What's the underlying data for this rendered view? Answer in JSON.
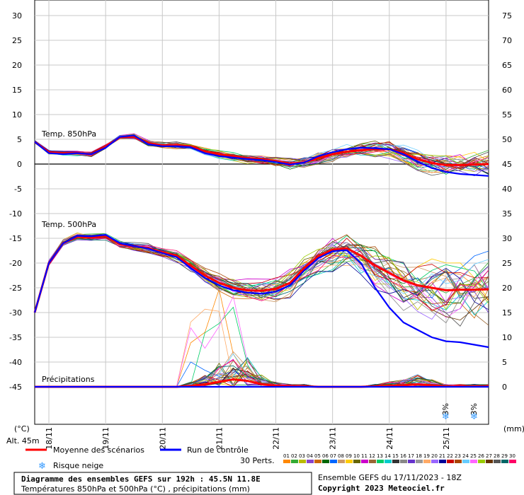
{
  "chart_data": {
    "type": "line",
    "title": "Diagramme des ensembles GEFS sur 192h : 45.5N 11.8E",
    "subtitle": "Températures 850hPa et 500hPa (°C) , précipitations (mm)",
    "run_info": "Ensemble GEFS du 17/11/2023 - 18Z",
    "copyright": "Copyright 2023 Meteociel.fr",
    "altitude": "Alt. 45m",
    "left_unit": "(°C)",
    "right_unit": "(mm)",
    "y_left_ticks": [
      "30",
      "25",
      "20",
      "15",
      "10",
      "5",
      "0",
      "-5",
      "-10",
      "-15",
      "-20",
      "-25",
      "-30",
      "-35",
      "-40",
      "-45"
    ],
    "y_right_ticks": [
      "75",
      "70",
      "65",
      "60",
      "55",
      "50",
      "45",
      "40",
      "35",
      "30",
      "25",
      "20",
      "15",
      "10",
      "5",
      "0"
    ],
    "ylim_temp": [
      -45,
      30
    ],
    "ylim_precip": [
      0,
      75
    ],
    "date_labels": [
      "18/11",
      "19/11",
      "20/11",
      "21/11",
      "22/11",
      "23/11",
      "24/11",
      "25/11"
    ],
    "hours": [
      0,
      6,
      12,
      18,
      24,
      30,
      36,
      42,
      48,
      54,
      60,
      66,
      72,
      78,
      84,
      90,
      96,
      102,
      108,
      114,
      120,
      126,
      132,
      138,
      144,
      150,
      156,
      162,
      168,
      174,
      180,
      186,
      192
    ],
    "panel_labels": {
      "t850": "Temp. 850hPa",
      "t500": "Temp. 500hPa",
      "precip": "Précipitations"
    },
    "legend": {
      "mean": "Moyenne des scénarios",
      "control": "Run de contrôle",
      "snow": "Risque neige",
      "perts": "30 Perts.",
      "member_numbers": [
        "01",
        "02",
        "03",
        "04",
        "05",
        "06",
        "07",
        "08",
        "09",
        "10",
        "11",
        "12",
        "13",
        "14",
        "15",
        "16",
        "17",
        "18",
        "19",
        "20",
        "21",
        "22",
        "23",
        "24",
        "25",
        "26",
        "27",
        "28",
        "29",
        "30"
      ]
    },
    "colors": {
      "mean": "#ff0000",
      "control": "#0000ff",
      "members": [
        "#ff8800",
        "#33aa33",
        "#bbbb00",
        "#8844cc",
        "#cc6600",
        "#006600",
        "#0066ff",
        "#cc9966",
        "#ffcc00",
        "#666600",
        "#cc00cc",
        "#996633",
        "#00cc66",
        "#00cccc",
        "#333333",
        "#888888",
        "#6633cc",
        "#999999",
        "#ffaa66",
        "#9966ff",
        "#000099",
        "#cc0000",
        "#aa4400",
        "#66ccff",
        "#ff66ff",
        "#99cc00",
        "#663300",
        "#555555",
        "#006666",
        "#ff0066"
      ]
    },
    "snow_markers": [
      {
        "hour": 174,
        "percent": "3%"
      },
      {
        "hour": 186,
        "percent": "3%"
      }
    ],
    "series": [
      {
        "name": "Moyenne des scénarios",
        "level": "850hPa",
        "values": [
          4.5,
          2.4,
          2.2,
          2.2,
          2.0,
          3.5,
          5.4,
          5.6,
          4.2,
          3.8,
          3.8,
          3.6,
          2.6,
          2.0,
          1.6,
          1.2,
          1.0,
          0.6,
          0.1,
          0.3,
          1.2,
          2.0,
          2.5,
          2.8,
          3.0,
          3.0,
          2.2,
          1.0,
          0.2,
          -0.2,
          -0.2,
          -0.1,
          0.0
        ]
      },
      {
        "name": "Run de contrôle",
        "level": "850hPa",
        "values": [
          4.5,
          2.2,
          2.0,
          2.2,
          2.0,
          3.3,
          5.5,
          5.8,
          4.0,
          3.6,
          3.6,
          3.4,
          2.2,
          1.6,
          1.3,
          1.0,
          0.8,
          0.4,
          -0.1,
          0.3,
          1.6,
          2.4,
          3.0,
          3.3,
          3.2,
          3.0,
          2.0,
          0.5,
          -0.8,
          -1.6,
          -2.0,
          -2.2,
          -2.4
        ]
      },
      {
        "name": "Moyenne des scénarios",
        "level": "500hPa",
        "values": [
          -30,
          -20,
          -16,
          -14.7,
          -14.8,
          -14.5,
          -16.2,
          -16.6,
          -17.0,
          -17.8,
          -18.5,
          -20.5,
          -22.5,
          -24.0,
          -25.0,
          -25.5,
          -25.6,
          -25.2,
          -24.0,
          -21.0,
          -18.6,
          -17.3,
          -17.0,
          -18.5,
          -20.5,
          -22.0,
          -23.5,
          -24.5,
          -25.0,
          -25.5,
          -25.4,
          -25.4,
          -25.3
        ]
      },
      {
        "name": "Run de contrôle",
        "level": "500hPa",
        "values": [
          -30,
          -20,
          -16,
          -14.5,
          -14.6,
          -14.3,
          -16.0,
          -16.6,
          -17.1,
          -18.0,
          -18.8,
          -21.0,
          -23.0,
          -24.5,
          -25.5,
          -26.0,
          -26.2,
          -25.8,
          -24.5,
          -21.5,
          -19.0,
          -17.6,
          -17.4,
          -20.0,
          -25.0,
          -29.0,
          -32.0,
          -33.5,
          -35.0,
          -35.8,
          -36.0,
          -36.5,
          -37.0
        ]
      },
      {
        "name": "Moyenne des scénarios",
        "level": "precip",
        "values": [
          0,
          0,
          0,
          0,
          0,
          0,
          0,
          0,
          0,
          0,
          0,
          0.2,
          0.5,
          1.0,
          1.5,
          1.2,
          0.5,
          0.2,
          0.1,
          0.1,
          0,
          0,
          0,
          0,
          0.1,
          0.2,
          0.3,
          0.5,
          0.3,
          0.1,
          0.1,
          0.1,
          0.1
        ]
      },
      {
        "name": "Run de contrôle",
        "level": "precip",
        "values": [
          0,
          0,
          0,
          0,
          0,
          0,
          0,
          0,
          0,
          0,
          0,
          0,
          0,
          0,
          0,
          0,
          0,
          0,
          0,
          0,
          0,
          0,
          0,
          0,
          0,
          0,
          0,
          0,
          0,
          0,
          0,
          0,
          0
        ]
      }
    ]
  }
}
